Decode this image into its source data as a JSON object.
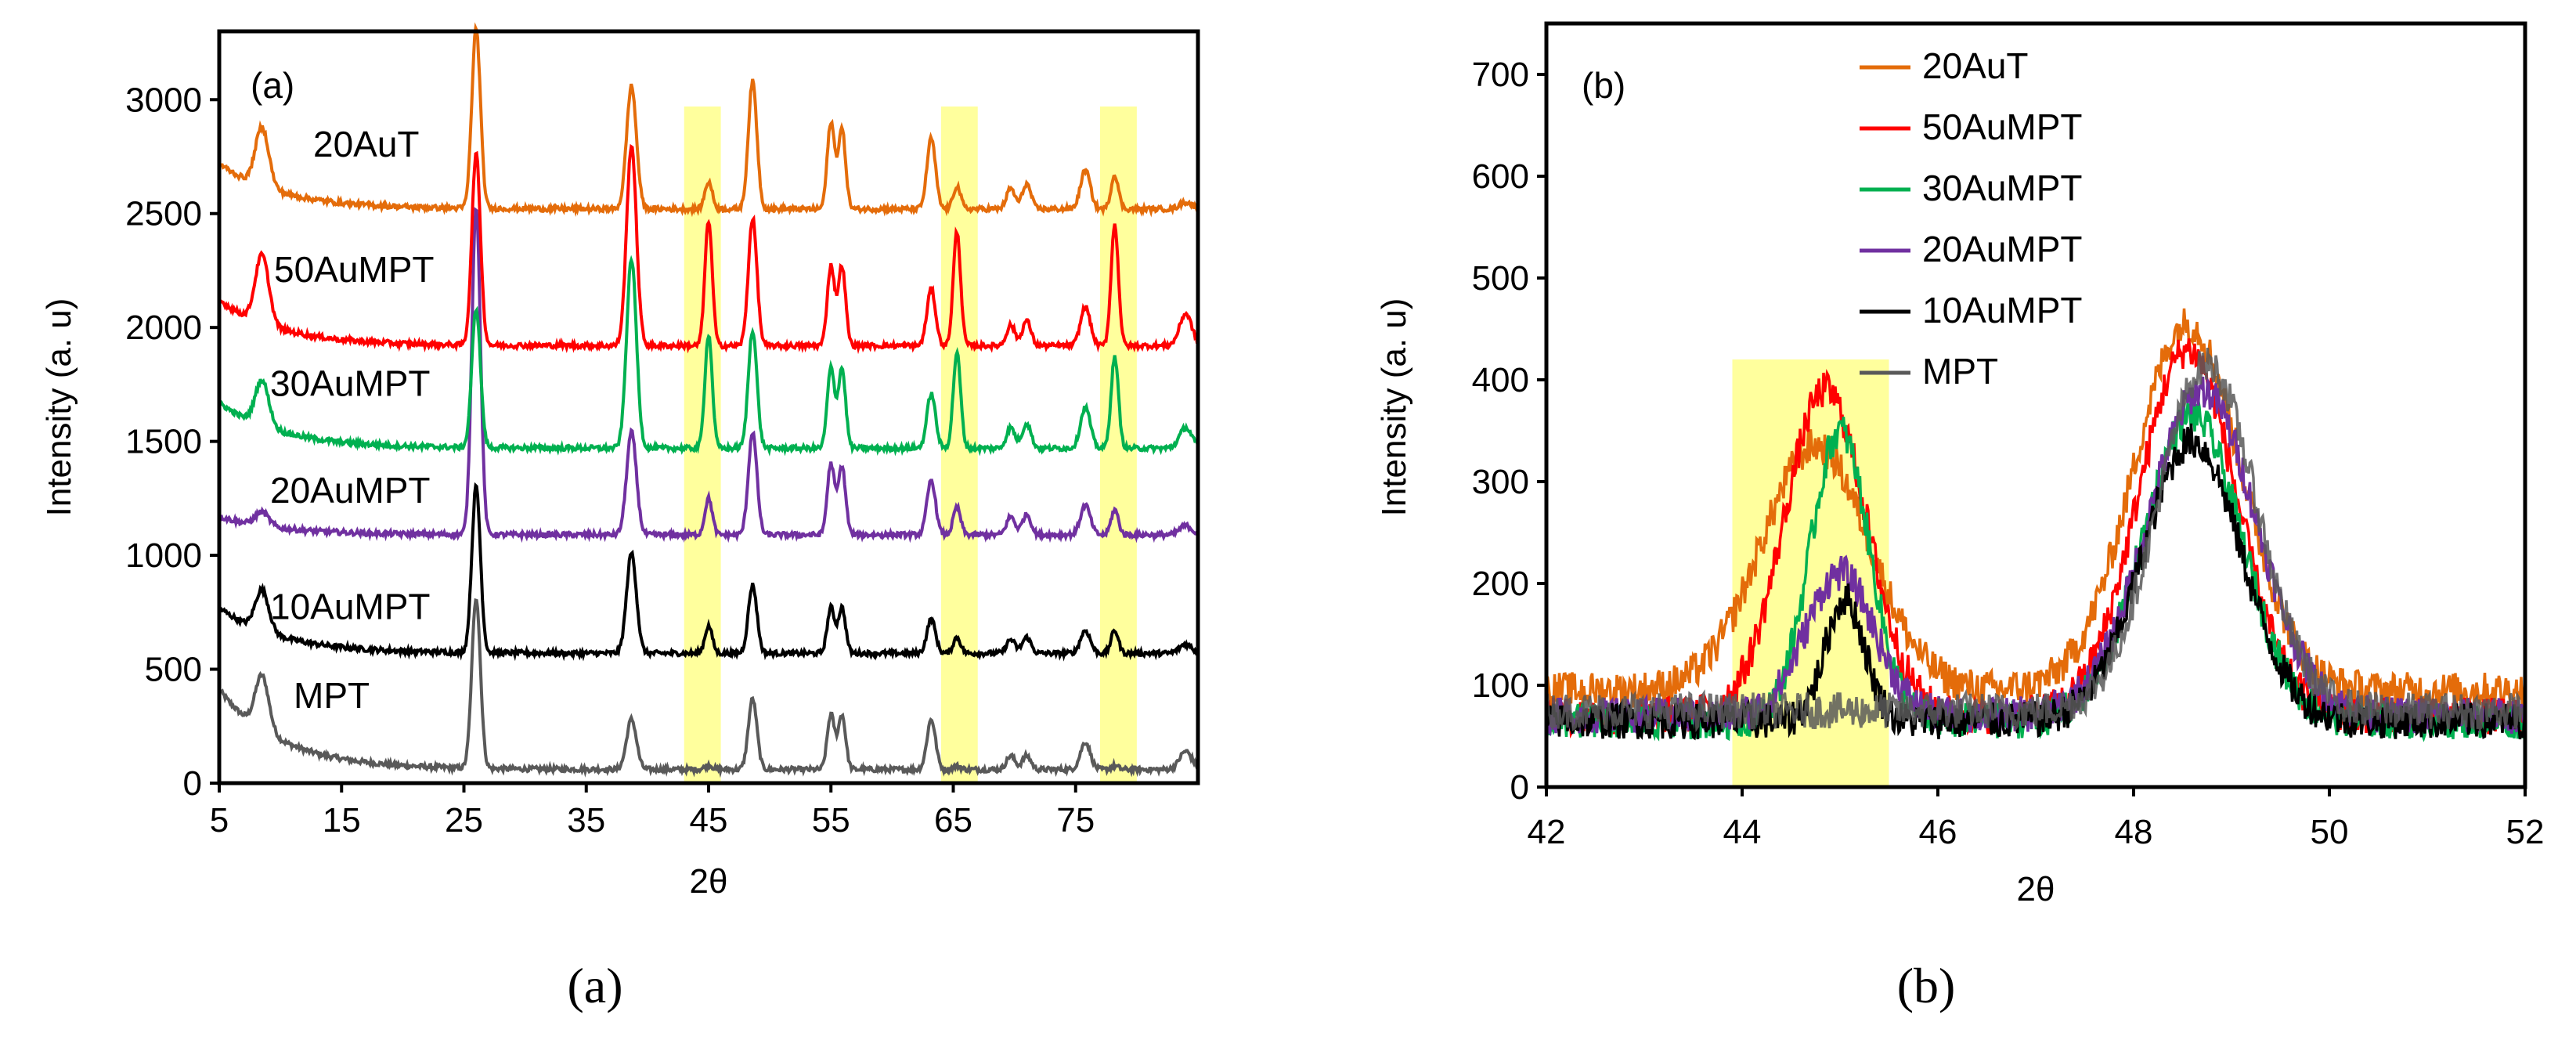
{
  "chart_data": [
    {
      "type": "line",
      "panel_label": "(a)",
      "caption": "(a)",
      "xlabel": "2θ",
      "ylabel": "Intensity (a. u)",
      "xlim": [
        5,
        85
      ],
      "ylim": [
        0,
        3300
      ],
      "xticks": [
        5,
        15,
        25,
        35,
        45,
        55,
        65,
        75
      ],
      "yticks": [
        0,
        500,
        1000,
        1500,
        2000,
        2500,
        3000
      ],
      "highlight_bands": [
        [
          43,
          46
        ],
        [
          64,
          67
        ],
        [
          77,
          80
        ]
      ],
      "highlight_color": "#ffff8c",
      "peaks": [
        8.5,
        26,
        38.7,
        45,
        48.6,
        55,
        55.9,
        63.2,
        65.3,
        69.7,
        71,
        75.8,
        78.2,
        84
      ],
      "series": [
        {
          "name": "MPT",
          "label": "MPT",
          "color": "#595959",
          "baseline": 60,
          "peaks": [
            240,
            750,
            220,
            20,
            310,
            240,
            240,
            220,
            15,
            60,
            60,
            120,
            15,
            80
          ]
        },
        {
          "name": "10AuMPT",
          "label": "10AuMPT",
          "color": "#000000",
          "baseline": 570,
          "peaks": [
            180,
            730,
            440,
            120,
            300,
            200,
            200,
            150,
            70,
            60,
            70,
            100,
            100,
            40
          ]
        },
        {
          "name": "20AuMPT",
          "label": "20AuMPT",
          "color": "#7030a0",
          "baseline": 1090,
          "peaks": [
            60,
            1440,
            450,
            160,
            450,
            310,
            300,
            240,
            120,
            80,
            90,
            130,
            110,
            40
          ]
        },
        {
          "name": "30AuMPT",
          "label": "30AuMPT",
          "color": "#00b050",
          "baseline": 1470,
          "peaks": [
            200,
            610,
            830,
            500,
            520,
            350,
            350,
            240,
            420,
            90,
            110,
            180,
            400,
            90
          ]
        },
        {
          "name": "50AuMPT",
          "label": "50AuMPT",
          "color": "#ff0000",
          "baseline": 1920,
          "peaks": [
            300,
            840,
            880,
            550,
            560,
            350,
            350,
            250,
            500,
            90,
            110,
            170,
            530,
            140
          ]
        },
        {
          "name": "20AuT",
          "label": "20AuT",
          "color": "#e46c0a",
          "baseline": 2520,
          "peaks": [
            260,
            790,
            540,
            120,
            560,
            380,
            350,
            310,
            100,
            90,
            110,
            170,
            150,
            30
          ]
        }
      ]
    },
    {
      "type": "line",
      "panel_label": "(b)",
      "caption": "(b)",
      "xlabel": "2θ",
      "ylabel": "Intensity (a. u)",
      "xlim": [
        42,
        52
      ],
      "ylim": [
        0,
        750
      ],
      "xticks": [
        42,
        44,
        46,
        48,
        50,
        52
      ],
      "yticks": [
        0,
        100,
        200,
        300,
        400,
        500,
        600,
        700
      ],
      "highlight_bands": [
        [
          43.9,
          45.5
        ]
      ],
      "highlight_ylim": [
        0,
        420
      ],
      "highlight_color": "#ffff8c",
      "series": [
        {
          "name": "20AuT",
          "color": "#e46c0a",
          "baseline": 95,
          "peak1": [
            44.75,
            240,
            0.55
          ],
          "peak2": [
            48.55,
            360,
            0.55
          ]
        },
        {
          "name": "50AuMPT",
          "color": "#ff0000",
          "baseline": 70,
          "peak1": [
            44.85,
            320,
            0.42
          ],
          "peak2": [
            48.55,
            360,
            0.5
          ]
        },
        {
          "name": "30AuMPT",
          "color": "#00b050",
          "baseline": 65,
          "peak1": [
            45.0,
            285,
            0.3
          ],
          "peak2": [
            48.6,
            300,
            0.5
          ]
        },
        {
          "name": "20AuMPT",
          "color": "#7030a0",
          "baseline": 70,
          "peak1": [
            45.0,
            140,
            0.35
          ],
          "peak2": [
            48.7,
            320,
            0.55
          ]
        },
        {
          "name": "10AuMPT",
          "color": "#000000",
          "baseline": 65,
          "peak1": [
            45.05,
            120,
            0.2
          ],
          "peak2": [
            48.6,
            275,
            0.5
          ]
        },
        {
          "name": "MPT",
          "color": "#595959",
          "baseline": 75,
          "peak1": [
            45.0,
            0,
            0.3
          ],
          "peak2": [
            48.75,
            340,
            0.5
          ]
        }
      ],
      "legend": [
        "20AuT",
        "50AuMPT",
        "30AuMPT",
        "20AuMPT",
        "10AuMPT",
        "MPT"
      ]
    }
  ]
}
